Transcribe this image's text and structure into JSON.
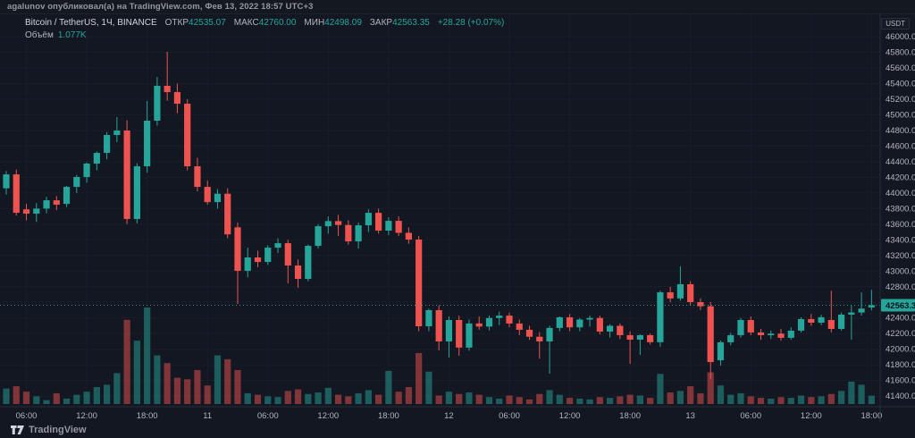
{
  "attribution": "agalunov опубликовал(а) на TradingView.com, Фев 13, 2022 18:57 UTC+3",
  "legend": {
    "symbol": "Bitcoin / TetherUS, 1Ч, BINANCE",
    "ohlc": [
      {
        "label": "ОТКР",
        "value": "42535.07"
      },
      {
        "label": "МАКС",
        "value": "42760.00"
      },
      {
        "label": "МИН",
        "value": "42498.09"
      },
      {
        "label": "ЗАКР",
        "value": "42563.35"
      }
    ],
    "change": "+28.28 (+0.07%)",
    "volume_label": "Объём",
    "volume_value": "1.077K"
  },
  "price_axis": {
    "unit": "USDT",
    "tick_min": 41400,
    "tick_max": 46000,
    "tick_step": 200,
    "current_price_label": "42563.35",
    "current_price": 42563.35
  },
  "time_axis": {
    "ticks": [
      {
        "label": "06:00",
        "index": 2
      },
      {
        "label": "12:00",
        "index": 8
      },
      {
        "label": "18:00",
        "index": 14
      },
      {
        "label": "11",
        "index": 20
      },
      {
        "label": "06:00",
        "index": 26
      },
      {
        "label": "12:00",
        "index": 32
      },
      {
        "label": "18:00",
        "index": 38
      },
      {
        "label": "12",
        "index": 44
      },
      {
        "label": "06:00",
        "index": 50
      },
      {
        "label": "12:00",
        "index": 56
      },
      {
        "label": "18:00",
        "index": 62
      },
      {
        "label": "13",
        "index": 68
      },
      {
        "label": "06:00",
        "index": 74
      },
      {
        "label": "12:00",
        "index": 80
      },
      {
        "label": "18:00",
        "index": 86
      }
    ]
  },
  "footer": {
    "brand": "TradingView"
  },
  "colors": {
    "background": "#131722",
    "grid": "#1e2230",
    "axis_text": "#b2b5be",
    "up": "#26a69a",
    "down": "#ef5350",
    "price_line": "#26a69a",
    "price_chip_bg": "#26a69a",
    "price_chip_text": "#0c1018",
    "border": "#2a2e39"
  },
  "chart_data": {
    "type": "candlestick+volume",
    "title": "Bitcoin / TetherUS",
    "exchange": "BINANCE",
    "interval": "1Ч",
    "quote_unit": "USDT",
    "start_time": "2022-02-10 04:00",
    "interval_hours": 1,
    "ylim": [
      41300,
      46100
    ],
    "legend_position": "top-left",
    "grid": true,
    "last_close": 42563.35,
    "last_volume_k": 1.077,
    "candles_ohlc": [
      [
        44060,
        44280,
        43980,
        44238
      ],
      [
        44238,
        44300,
        43712,
        43746
      ],
      [
        43790,
        43860,
        43650,
        43735
      ],
      [
        43735,
        43870,
        43630,
        43800
      ],
      [
        43800,
        43950,
        43740,
        43906
      ],
      [
        43906,
        43960,
        43780,
        43850
      ],
      [
        43860,
        44090,
        43820,
        44078
      ],
      [
        44078,
        44230,
        44000,
        44204
      ],
      [
        44204,
        44390,
        44130,
        44376
      ],
      [
        44376,
        44530,
        44290,
        44513
      ],
      [
        44513,
        44780,
        44430,
        44742
      ],
      [
        44742,
        44971,
        44650,
        44799
      ],
      [
        44799,
        44930,
        43600,
        43667
      ],
      [
        43667,
        44380,
        43610,
        44341
      ],
      [
        44341,
        45177,
        44260,
        44925
      ],
      [
        44925,
        45485,
        44860,
        45371
      ],
      [
        45371,
        45806,
        45180,
        45291
      ],
      [
        45291,
        45400,
        45020,
        45142
      ],
      [
        45142,
        45200,
        44290,
        44341
      ],
      [
        44341,
        44450,
        44020,
        44078
      ],
      [
        44078,
        44160,
        43850,
        43883
      ],
      [
        43883,
        44050,
        43800,
        43990
      ],
      [
        43990,
        44060,
        43420,
        43470
      ],
      [
        43560,
        43620,
        42580,
        43003
      ],
      [
        43003,
        43300,
        42920,
        43175
      ],
      [
        43175,
        43260,
        43050,
        43117
      ],
      [
        43117,
        43330,
        43080,
        43300
      ],
      [
        43300,
        43420,
        43230,
        43357
      ],
      [
        43357,
        43400,
        42843,
        43072
      ],
      [
        43072,
        43150,
        42786,
        42900
      ],
      [
        42900,
        43340,
        42870,
        43323
      ],
      [
        43323,
        43600,
        43290,
        43574
      ],
      [
        43574,
        43700,
        43480,
        43640
      ],
      [
        43640,
        43720,
        43450,
        43590
      ],
      [
        43590,
        43650,
        43340,
        43380
      ],
      [
        43380,
        43620,
        43289,
        43586
      ],
      [
        43586,
        43790,
        43500,
        43746
      ],
      [
        43746,
        43800,
        43480,
        43518
      ],
      [
        43518,
        43690,
        43460,
        43643
      ],
      [
        43643,
        43700,
        43450,
        43490
      ],
      [
        43490,
        43560,
        43350,
        43403
      ],
      [
        43403,
        43450,
        42230,
        42294
      ],
      [
        42294,
        42520,
        42230,
        42500
      ],
      [
        42500,
        42560,
        41985,
        42100
      ],
      [
        42100,
        42420,
        41893,
        42374
      ],
      [
        42374,
        42430,
        41916,
        42021
      ],
      [
        42021,
        42380,
        41980,
        42330
      ],
      [
        42330,
        42420,
        42250,
        42290
      ],
      [
        42290,
        42430,
        42240,
        42400
      ],
      [
        42400,
        42480,
        42310,
        42430
      ],
      [
        42430,
        42470,
        42280,
        42329
      ],
      [
        42329,
        42380,
        42180,
        42249
      ],
      [
        42249,
        42300,
        42120,
        42160
      ],
      [
        42160,
        42220,
        41880,
        42100
      ],
      [
        42100,
        42300,
        41687,
        42272
      ],
      [
        42272,
        42420,
        42230,
        42409
      ],
      [
        42409,
        42450,
        42230,
        42280
      ],
      [
        42280,
        42400,
        42230,
        42380
      ],
      [
        42380,
        42430,
        42290,
        42400
      ],
      [
        42400,
        42430,
        42190,
        42226
      ],
      [
        42226,
        42320,
        42150,
        42300
      ],
      [
        42300,
        42330,
        42130,
        42180
      ],
      [
        42180,
        42230,
        41813,
        42123
      ],
      [
        42123,
        42190,
        41927,
        42180
      ],
      [
        42180,
        42200,
        42060,
        42090
      ],
      [
        42090,
        42750,
        42031,
        42729
      ],
      [
        42729,
        42800,
        42600,
        42650
      ],
      [
        42650,
        43060,
        42620,
        42832
      ],
      [
        42832,
        42870,
        42560,
        42603
      ],
      [
        42603,
        42650,
        42500,
        42550
      ],
      [
        42550,
        42603,
        41618,
        41836
      ],
      [
        41859,
        42111,
        41790,
        42089
      ],
      [
        42089,
        42210,
        42050,
        42180
      ],
      [
        42180,
        42400,
        42150,
        42374
      ],
      [
        42374,
        42420,
        42180,
        42215
      ],
      [
        42215,
        42260,
        42120,
        42180
      ],
      [
        42180,
        42240,
        42130,
        42200
      ],
      [
        42200,
        42260,
        42110,
        42146
      ],
      [
        42146,
        42280,
        42120,
        42238
      ],
      [
        42238,
        42410,
        42215,
        42386
      ],
      [
        42386,
        42450,
        42300,
        42340
      ],
      [
        42340,
        42440,
        42310,
        42409
      ],
      [
        42374,
        42750,
        42215,
        42260
      ],
      [
        42260,
        42470,
        42240,
        42443
      ],
      [
        42443,
        42560,
        42123,
        42470
      ],
      [
        42470,
        42729,
        42430,
        42520
      ],
      [
        42535.07,
        42760,
        42498.09,
        42563.35
      ]
    ],
    "volumes_k": [
      2.0,
      2.3,
      1.6,
      1.0,
      0.5,
      1.4,
      0.7,
      1.2,
      1.6,
      2.2,
      2.5,
      4.0,
      10.9,
      8.2,
      12.5,
      6.3,
      5.3,
      3.4,
      3.2,
      4.4,
      2.4,
      6.3,
      5.8,
      4.4,
      1.4,
      1.2,
      1.0,
      0.9,
      1.7,
      1.9,
      1.3,
      1.5,
      2.1,
      1.2,
      1.0,
      1.4,
      1.8,
      1.2,
      4.3,
      1.6,
      2.2,
      6.6,
      4.2,
      1.1,
      1.6,
      1.3,
      1.5,
      1.2,
      0.9,
      0.7,
      1.1,
      0.9,
      0.6,
      1.3,
      1.8,
      1.2,
      0.8,
      0.7,
      0.6,
      0.9,
      0.8,
      1.0,
      1.2,
      1.1,
      0.8,
      3.9,
      1.5,
      1.7,
      2.3,
      1.4,
      4.1,
      2.4,
      1.2,
      1.4,
      1.0,
      0.8,
      0.7,
      0.9,
      0.8,
      1.1,
      0.9,
      1.0,
      1.3,
      1.7,
      2.9,
      2.5,
      1.077
    ]
  }
}
